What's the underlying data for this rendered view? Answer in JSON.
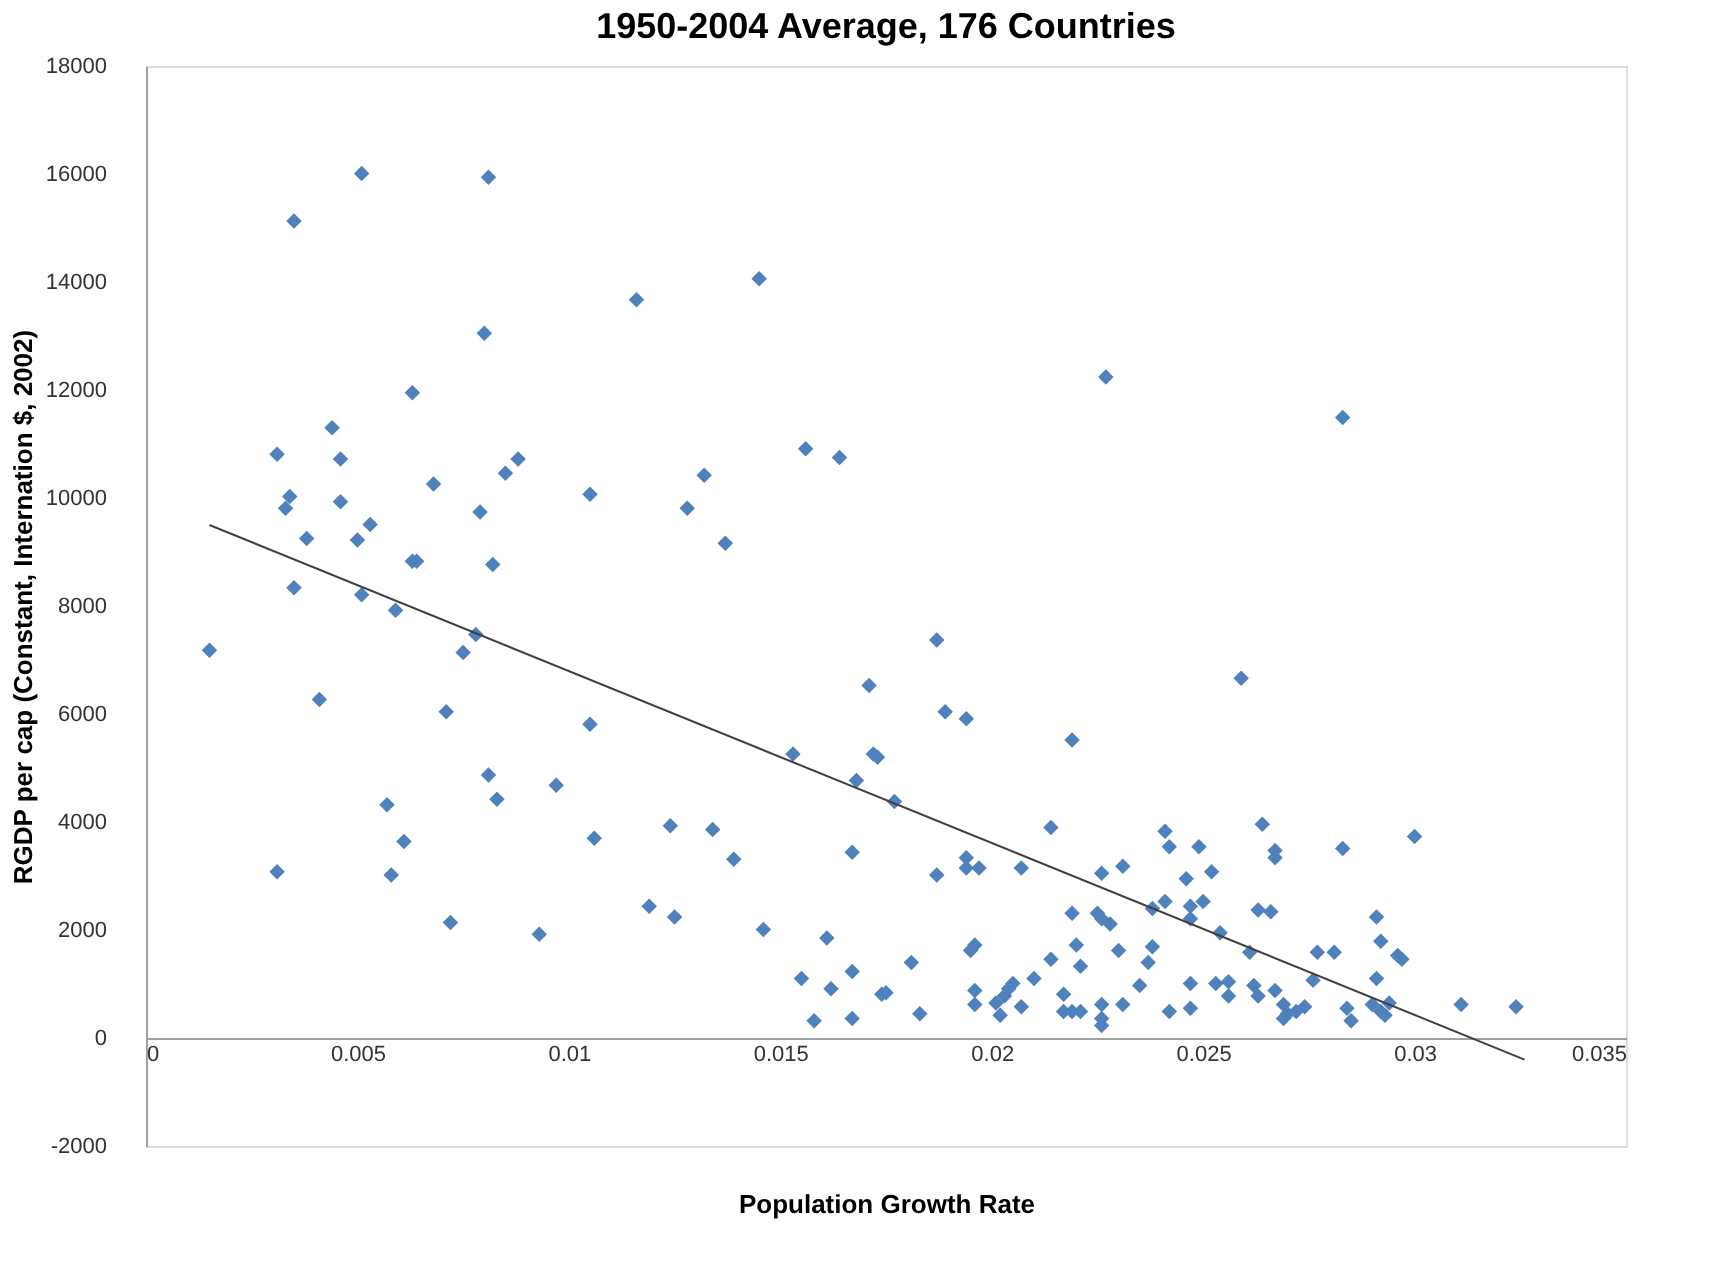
{
  "chart_data": {
    "type": "scatter",
    "title": "1950-2004 Average, 176 Countries",
    "xlabel": "Population Growth Rate",
    "ylabel": "RGDP per cap (Constant, Internation $, 2002)",
    "xlim": [
      0,
      0.035
    ],
    "xticks": [
      0,
      0.005,
      0.01,
      0.015,
      0.02,
      0.025,
      0.03,
      0.035
    ],
    "ylim": [
      -2000,
      18000
    ],
    "yticks": [
      -2000,
      0,
      2000,
      4000,
      6000,
      8000,
      10000,
      12000,
      14000,
      16000,
      18000
    ],
    "grid": false,
    "marker": "diamond",
    "series": [
      {
        "color": "#4f81bd",
        "x": [
          0.0051,
          0.0081,
          0.0035,
          0.0145,
          0.0116,
          0.008,
          0.0227,
          0.0063,
          0.0283,
          0.0044,
          0.0156,
          0.0031,
          0.0164,
          0.0046,
          0.0088,
          0.0085,
          0.0132,
          0.0068,
          0.0105,
          0.0034,
          0.0046,
          0.0033,
          0.0128,
          0.0079,
          0.0053,
          0.0038,
          0.005,
          0.0137,
          0.0063,
          0.0064,
          0.0082,
          0.0035,
          0.0051,
          0.0059,
          0.0015,
          0.0075,
          0.0078,
          0.0041,
          0.0071,
          0.0105,
          0.0171,
          0.0153,
          0.0172,
          0.0173,
          0.0168,
          0.0081,
          0.0083,
          0.0097,
          0.0057,
          0.0061,
          0.0058,
          0.0031,
          0.0106,
          0.0124,
          0.0134,
          0.0139,
          0.0167,
          0.0119,
          0.0125,
          0.0072,
          0.0093,
          0.0146,
          0.0161,
          0.0155,
          0.0162,
          0.0167,
          0.0158,
          0.0167,
          0.0174,
          0.0187,
          0.0189,
          0.0194,
          0.0259,
          0.0219,
          0.0177,
          0.0214,
          0.0241,
          0.0264,
          0.03,
          0.0242,
          0.0249,
          0.0267,
          0.0267,
          0.0283,
          0.0194,
          0.0194,
          0.0197,
          0.0187,
          0.0207,
          0.0226,
          0.0231,
          0.0246,
          0.0252,
          0.0241,
          0.025,
          0.0247,
          0.0238,
          0.0219,
          0.0225,
          0.0226,
          0.0228,
          0.0247,
          0.0263,
          0.0266,
          0.0291,
          0.0254,
          0.0196,
          0.0195,
          0.022,
          0.0238,
          0.023,
          0.0261,
          0.0277,
          0.0281,
          0.0292,
          0.0296,
          0.0297,
          0.0181,
          0.0214,
          0.0221,
          0.0237,
          0.021,
          0.0175,
          0.0196,
          0.0205,
          0.0204,
          0.0203,
          0.0235,
          0.0247,
          0.0253,
          0.0256,
          0.0262,
          0.0263,
          0.0267,
          0.0276,
          0.0291,
          0.0217,
          0.0256,
          0.0196,
          0.0201,
          0.0202,
          0.0207,
          0.0217,
          0.0219,
          0.0221,
          0.0226,
          0.0226,
          0.0231,
          0.0242,
          0.0247,
          0.0269,
          0.027,
          0.0269,
          0.0272,
          0.0274,
          0.0284,
          0.0285,
          0.029,
          0.0292,
          0.0293,
          0.0294,
          0.0311,
          0.0324,
          0.0183,
          0.0226
        ],
        "values": [
          16010,
          15940,
          15130,
          14060,
          13670,
          13050,
          12240,
          11950,
          11490,
          11300,
          10910,
          10810,
          10750,
          10720,
          10720,
          10460,
          10420,
          10260,
          10070,
          10030,
          9930,
          9810,
          9810,
          9740,
          9510,
          9250,
          9220,
          9160,
          8830,
          8830,
          8770,
          8340,
          8210,
          7920,
          7180,
          7140,
          7470,
          6270,
          6040,
          5810,
          6530,
          5260,
          5260,
          5200,
          4770,
          4870,
          4420,
          4680,
          4320,
          3640,
          3020,
          3080,
          3700,
          3930,
          3860,
          3310,
          3440,
          2440,
          2240,
          2140,
          1920,
          2010,
          1850,
          1100,
          910,
          1230,
          320,
          360,
          810,
          7370,
          6040,
          5910,
          6660,
          5520,
          4380,
          3900,
          3830,
          3960,
          3730,
          3540,
          3540,
          3470,
          3340,
          3510,
          3340,
          3150,
          3150,
          3020,
          3150,
          3050,
          3180,
          2950,
          3080,
          2530,
          2530,
          2440,
          2400,
          2310,
          2310,
          2210,
          2110,
          2210,
          2370,
          2340,
          2240,
          1950,
          1720,
          1620,
          1720,
          1690,
          1620,
          1590,
          1590,
          1590,
          1790,
          1530,
          1460,
          1400,
          1460,
          1330,
          1400,
          1100,
          840,
          880,
          1010,
          910,
          780,
          970,
          1010,
          1010,
          1040,
          970,
          780,
          880,
          1070,
          1100,
          810,
          780,
          620,
          650,
          420,
          580,
          490,
          490,
          490,
          620,
          360,
          620,
          490,
          550,
          620,
          450,
          360,
          490,
          580,
          550,
          320,
          620,
          490,
          420,
          650,
          620,
          580,
          450,
          230
        ]
      },
      {
        "type": "line",
        "color": "#404040",
        "marker": "none",
        "line_style": "solid",
        "x": [
          0.0015,
          0.0326
        ],
        "values": [
          9500,
          -400
        ]
      }
    ]
  }
}
